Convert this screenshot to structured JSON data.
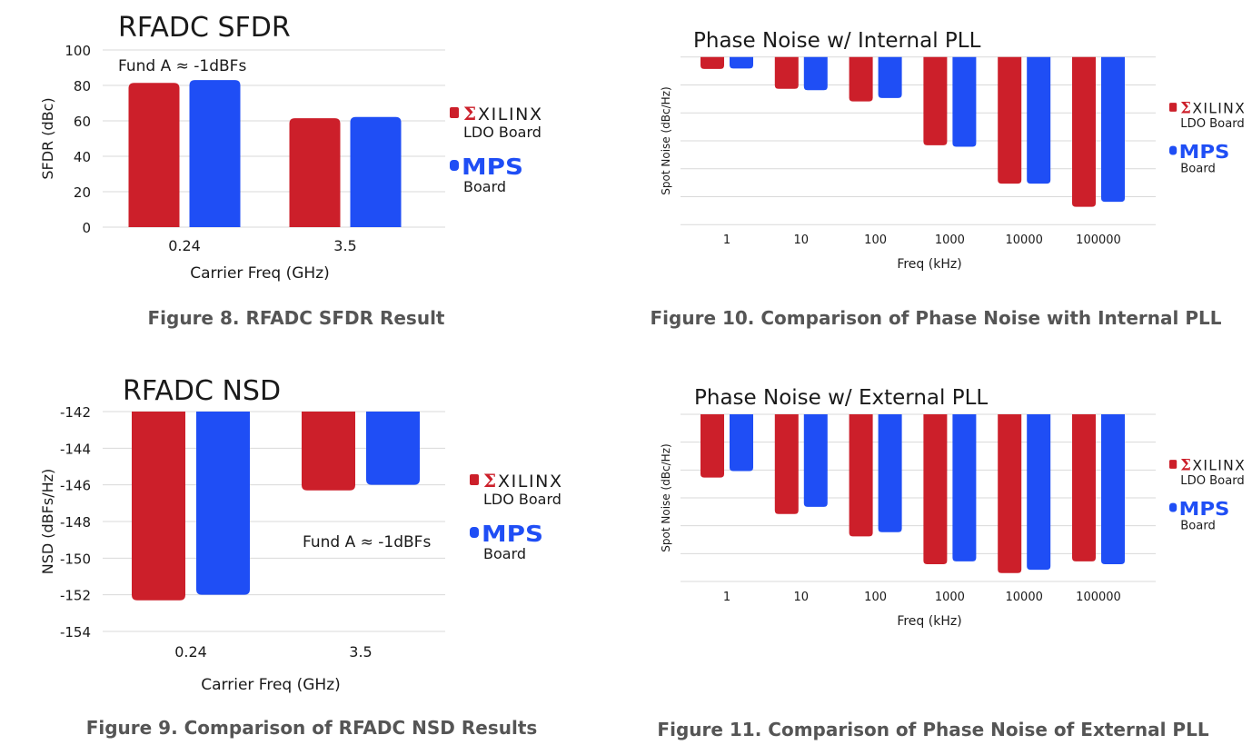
{
  "colors": {
    "xilinx": "#cc1f2a",
    "mps": "#1f4ef5",
    "grid": "#d9d9d9",
    "caption": "#555555"
  },
  "legend": {
    "xilinx_logo": "XILINX",
    "xilinx_label": "LDO Board",
    "mps_logo": "MPS",
    "mps_label": "Board"
  },
  "chart_data": [
    {
      "id": "sfdr",
      "type": "bar",
      "title": "RFADC SFDR",
      "annotation": "Fund A ≈ -1dBFs",
      "xlabel": "Carrier Freq (GHz)",
      "ylabel": "SFDR (dBc)",
      "categories": [
        "0.24",
        "3.5"
      ],
      "yticks": [
        0,
        20,
        40,
        60,
        80,
        100
      ],
      "ylim": [
        0,
        100
      ],
      "grid": true,
      "legend_position": "right",
      "series": [
        {
          "name": "XILINX LDO Board",
          "values": [
            81.4,
            61.5
          ]
        },
        {
          "name": "MPS Board",
          "values": [
            83.0,
            62.2
          ]
        }
      ],
      "caption": "Figure 8.  RFADC SFDR Result"
    },
    {
      "id": "nsd",
      "type": "bar",
      "title": "RFADC NSD",
      "annotation": "Fund A ≈ -1dBFs",
      "xlabel": "Carrier Freq (GHz)",
      "ylabel": "NSD (dBFs/Hz)",
      "categories": [
        "0.24",
        "3.5"
      ],
      "yticks": [
        -142,
        -144,
        -146,
        -148,
        -150,
        -152,
        -154
      ],
      "ylim": [
        -154,
        -142
      ],
      "grid": true,
      "legend_position": "right",
      "series": [
        {
          "name": "XILINX LDO Board",
          "values": [
            -152.3,
            -146.3
          ]
        },
        {
          "name": "MPS Board",
          "values": [
            -152.0,
            -146.0
          ]
        }
      ],
      "caption": "Figure 9. Comparison of RFADC NSD Results"
    },
    {
      "id": "pn-internal",
      "type": "bar",
      "title": "Phase Noise w/ Internal PLL",
      "xlabel": "Freq (kHz)",
      "ylabel": "Spot Noise (dBc/Hz)",
      "categories": [
        "1",
        "10",
        "100",
        "1000",
        "10000",
        "100000"
      ],
      "yticks": [],
      "y_units_note": "no y tick labels printed; values in gridline divisions below top",
      "ylim": [
        -6,
        0
      ],
      "grid": true,
      "legend_position": "right",
      "series": [
        {
          "name": "XILINX LDO Board",
          "values": [
            -0.43,
            -1.14,
            -1.59,
            -3.16,
            -4.53,
            -5.36
          ]
        },
        {
          "name": "MPS Board",
          "values": [
            -0.41,
            -1.19,
            -1.47,
            -3.21,
            -4.53,
            -5.18
          ]
        }
      ],
      "caption": "Figure 10. Comparison of Phase Noise with Internal PLL"
    },
    {
      "id": "pn-external",
      "type": "bar",
      "title": "Phase Noise w/ External PLL",
      "xlabel": "Freq (kHz)",
      "ylabel": "Spot Noise (dBc/Hz)",
      "categories": [
        "1",
        "10",
        "100",
        "1000",
        "10000",
        "100000"
      ],
      "yticks": [],
      "y_units_note": "no y tick labels printed; values in gridline divisions below top",
      "ylim": [
        -6,
        0
      ],
      "grid": true,
      "legend_position": "right",
      "series": [
        {
          "name": "XILINX LDO Board",
          "values": [
            -2.27,
            -3.58,
            -4.38,
            -5.38,
            -5.7,
            -5.28
          ]
        },
        {
          "name": "MPS Board",
          "values": [
            -2.04,
            -3.32,
            -4.23,
            -5.28,
            -5.58,
            -5.38
          ]
        }
      ],
      "caption": "Figure 11. Comparison of Phase Noise of External PLL"
    }
  ]
}
